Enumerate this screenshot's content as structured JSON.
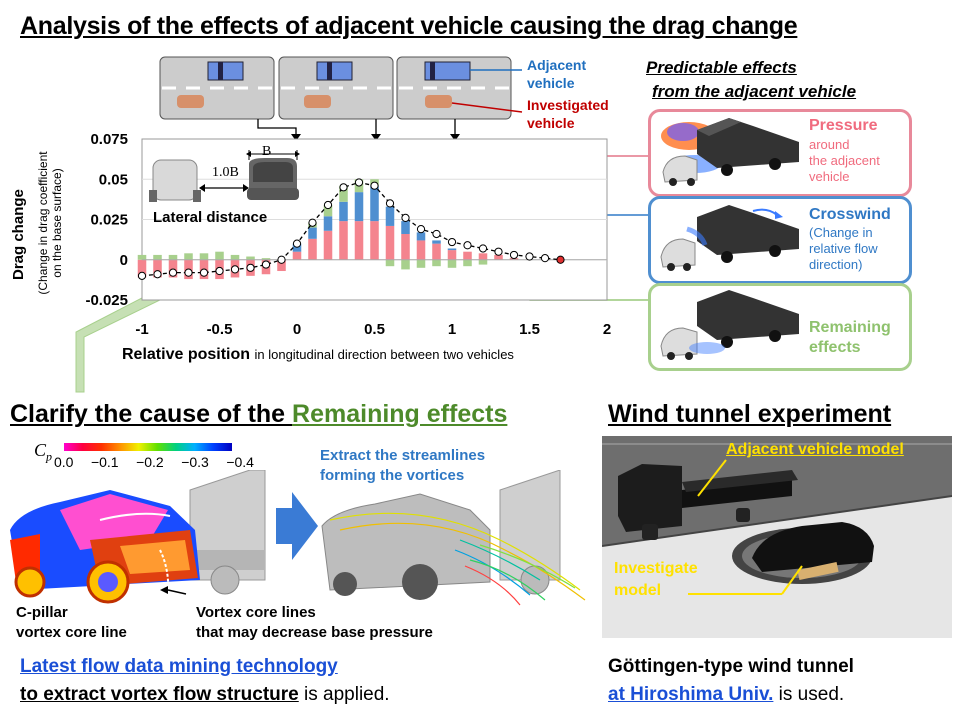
{
  "title": "Analysis of the effects of adjacent vehicle causing the drag change",
  "legend": {
    "adjacent": "Adjacent\nvehicle",
    "investigated": "Investigated\nvehicle"
  },
  "predictable": {
    "heading_line1": "Predictable effects",
    "heading_line2": "from the adjacent vehicle",
    "pressure_title": "Pressure",
    "pressure_sub": "around\nthe adjacent\nvehicle",
    "crosswind_title": "Crosswind",
    "crosswind_sub": "(Change in\nrelative flow\ndirection)",
    "remaining_title": "Remaining\neffects"
  },
  "inset": {
    "b_label": "B",
    "distance_label": "1.0B",
    "caption": "Lateral distance"
  },
  "chart_data": {
    "type": "bar",
    "ylabel": "Drag change",
    "ylabel_sub": "(Change in drag coefficient\non the base surface)",
    "xlabel": "Relative position",
    "xlabel_sub": "in longitudinal direction between two vehicles",
    "xlim": [
      -1,
      2
    ],
    "ylim": [
      -0.025,
      0.075
    ],
    "x_ticks": [
      "-1",
      "-0.5",
      "0",
      "0.5",
      "1",
      "1.5",
      "2"
    ],
    "y_ticks": [
      "0.075",
      "0.05",
      "0.025",
      "0",
      "-0.025"
    ],
    "x": [
      -1.0,
      -0.9,
      -0.8,
      -0.7,
      -0.6,
      -0.5,
      -0.4,
      -0.3,
      -0.2,
      -0.1,
      0.0,
      0.1,
      0.2,
      0.3,
      0.4,
      0.5,
      0.6,
      0.7,
      0.8,
      0.9,
      1.0,
      1.1,
      1.2,
      1.3,
      1.4,
      1.5,
      1.6,
      1.7
    ],
    "series": [
      {
        "color": "#f4848e",
        "values": [
          -0.011,
          -0.011,
          -0.011,
          -0.012,
          -0.012,
          -0.012,
          -0.011,
          -0.01,
          -0.009,
          -0.007,
          0.005,
          0.013,
          0.018,
          0.024,
          0.024,
          0.024,
          0.021,
          0.016,
          0.012,
          0.01,
          0.006,
          0.005,
          0.004,
          0.003,
          0.001,
          0.0,
          0.0,
          0.0
        ]
      },
      {
        "color": "#4f8fd0",
        "values": [
          0.0,
          0.0,
          0.0,
          0.0,
          0.0,
          0.0,
          0.0,
          0.0,
          0.0,
          0.0,
          0.005,
          0.007,
          0.009,
          0.012,
          0.018,
          0.022,
          0.012,
          0.008,
          0.005,
          0.002,
          0.001,
          0.0,
          0.0,
          0.0,
          0.0,
          0.0,
          0.0,
          0.0
        ]
      },
      {
        "color": "#a8d08d",
        "values": [
          0.003,
          0.003,
          0.003,
          0.004,
          0.004,
          0.005,
          0.003,
          0.002,
          0.001,
          0.0,
          0.0,
          0.003,
          0.007,
          0.01,
          0.008,
          0.004,
          -0.004,
          -0.006,
          -0.005,
          -0.004,
          -0.005,
          -0.004,
          -0.003,
          0.0,
          0.0,
          0.0,
          0.0,
          0.0
        ]
      }
    ],
    "total": [
      -0.01,
      -0.009,
      -0.008,
      -0.008,
      -0.008,
      -0.007,
      -0.006,
      -0.005,
      -0.003,
      0.0,
      0.01,
      0.023,
      0.034,
      0.045,
      0.048,
      0.046,
      0.035,
      0.026,
      0.019,
      0.016,
      0.011,
      0.009,
      0.007,
      0.005,
      0.003,
      0.002,
      0.001,
      0.0
    ]
  },
  "remaining_section": {
    "title_prefix": "Clarify the cause of the ",
    "title_highlight": "Remaining effects",
    "cp_label": "C",
    "cp_sub": "p",
    "cp_ticks": [
      "0.0",
      "−0.1",
      "−0.2",
      "−0.3",
      "−0.4"
    ],
    "extract_text": "Extract the streamlines\nforming the vortices",
    "cpillar_label": "C-pillar\nvortex core line",
    "vortex_label": "Vortex core lines\nthat may decrease base pressure",
    "footer_link": "Latest flow data mining technology",
    "footer_bold": "to extract vortex flow structure",
    "footer_rest": " is applied."
  },
  "wind_tunnel": {
    "title": "Wind tunnel experiment",
    "adjacent_model": "Adjacent vehicle model",
    "investigate_model": "Investigate\nmodel",
    "footer_line1": "Göttingen-type wind tunnel",
    "footer_link": "at Hiroshima Univ.",
    "footer_rest": " is used."
  }
}
